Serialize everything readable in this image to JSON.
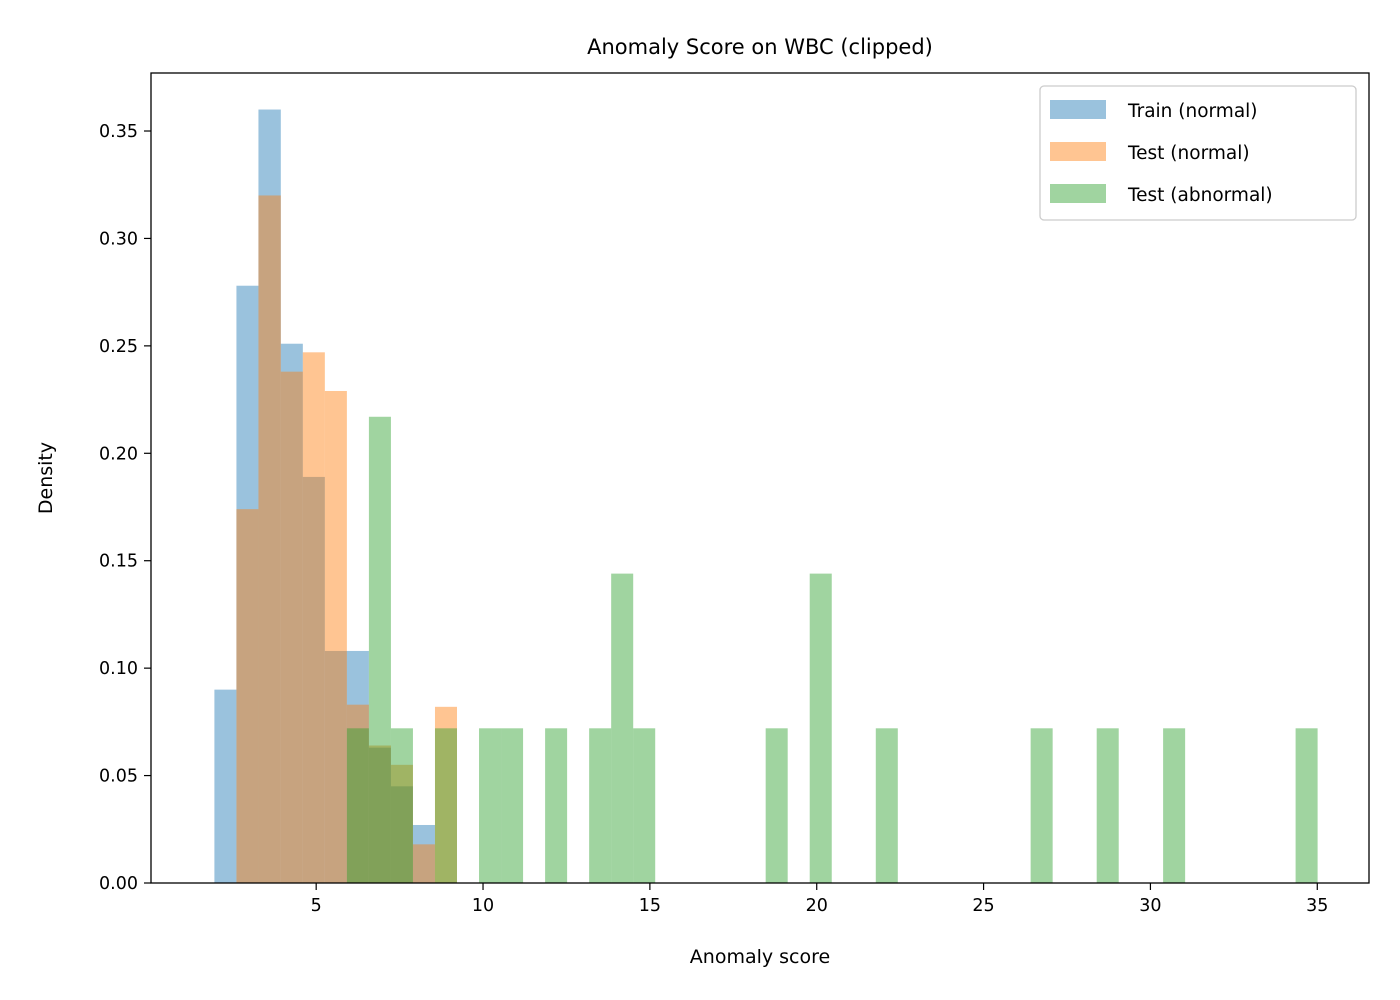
{
  "chart_data": {
    "type": "histogram",
    "title": "Anomaly Score on WBC (clipped)",
    "xlabel": "Anomaly score",
    "ylabel": "Density",
    "xlim": [
      0.05,
      36.55
    ],
    "ylim": [
      0,
      0.377
    ],
    "xticks": [
      {
        "value": 5,
        "label": "5"
      },
      {
        "value": 10,
        "label": "10"
      },
      {
        "value": 15,
        "label": "15"
      },
      {
        "value": 20,
        "label": "20"
      },
      {
        "value": 25,
        "label": "25"
      },
      {
        "value": 30,
        "label": "30"
      },
      {
        "value": 35,
        "label": "35"
      }
    ],
    "yticks": [
      {
        "value": 0.0,
        "label": "0.00"
      },
      {
        "value": 0.05,
        "label": "0.05"
      },
      {
        "value": 0.1,
        "label": "0.10"
      },
      {
        "value": 0.15,
        "label": "0.15"
      },
      {
        "value": 0.2,
        "label": "0.20"
      },
      {
        "value": 0.25,
        "label": "0.25"
      },
      {
        "value": 0.3,
        "label": "0.30"
      },
      {
        "value": 0.35,
        "label": "0.35"
      }
    ],
    "grid": false,
    "legend_position": "top-right",
    "series": [
      {
        "name": "Train (normal)",
        "color": "#1f77b4",
        "alpha": 0.45,
        "bins": [
          {
            "x0": 1.95,
            "x1": 2.61,
            "value": 0.09
          },
          {
            "x0": 2.61,
            "x1": 3.27,
            "value": 0.278
          },
          {
            "x0": 3.27,
            "x1": 3.94,
            "value": 0.36
          },
          {
            "x0": 3.94,
            "x1": 4.6,
            "value": 0.251
          },
          {
            "x0": 4.6,
            "x1": 5.26,
            "value": 0.189
          },
          {
            "x0": 5.26,
            "x1": 5.92,
            "value": 0.108
          },
          {
            "x0": 5.92,
            "x1": 6.58,
            "value": 0.108
          },
          {
            "x0": 6.58,
            "x1": 7.24,
            "value": 0.063
          },
          {
            "x0": 7.24,
            "x1": 7.9,
            "value": 0.045
          },
          {
            "x0": 7.9,
            "x1": 8.56,
            "value": 0.027
          }
        ]
      },
      {
        "name": "Test (normal)",
        "color": "#ff7f0e",
        "alpha": 0.45,
        "bins": [
          {
            "x0": 2.61,
            "x1": 3.27,
            "value": 0.174
          },
          {
            "x0": 3.27,
            "x1": 3.94,
            "value": 0.32
          },
          {
            "x0": 3.94,
            "x1": 4.6,
            "value": 0.238
          },
          {
            "x0": 4.6,
            "x1": 5.26,
            "value": 0.247
          },
          {
            "x0": 5.26,
            "x1": 5.92,
            "value": 0.229
          },
          {
            "x0": 5.92,
            "x1": 6.58,
            "value": 0.083
          },
          {
            "x0": 6.58,
            "x1": 7.24,
            "value": 0.064
          },
          {
            "x0": 7.24,
            "x1": 7.9,
            "value": 0.055
          },
          {
            "x0": 7.9,
            "x1": 8.56,
            "value": 0.018
          },
          {
            "x0": 8.56,
            "x1": 9.22,
            "value": 0.082
          }
        ]
      },
      {
        "name": "Test (abnormal)",
        "color": "#2ca02c",
        "alpha": 0.45,
        "bins": [
          {
            "x0": 5.92,
            "x1": 6.58,
            "value": 0.072
          },
          {
            "x0": 6.58,
            "x1": 7.24,
            "value": 0.217
          },
          {
            "x0": 7.24,
            "x1": 7.9,
            "value": 0.072
          },
          {
            "x0": 8.56,
            "x1": 9.22,
            "value": 0.072
          },
          {
            "x0": 9.88,
            "x1": 10.54,
            "value": 0.072
          },
          {
            "x0": 10.54,
            "x1": 11.2,
            "value": 0.072
          },
          {
            "x0": 11.86,
            "x1": 12.52,
            "value": 0.072
          },
          {
            "x0": 13.18,
            "x1": 13.84,
            "value": 0.072
          },
          {
            "x0": 13.84,
            "x1": 14.5,
            "value": 0.144
          },
          {
            "x0": 14.5,
            "x1": 15.16,
            "value": 0.072
          },
          {
            "x0": 18.47,
            "x1": 19.13,
            "value": 0.072
          },
          {
            "x0": 19.79,
            "x1": 20.45,
            "value": 0.144
          },
          {
            "x0": 21.77,
            "x1": 22.43,
            "value": 0.072
          },
          {
            "x0": 26.41,
            "x1": 27.07,
            "value": 0.072
          },
          {
            "x0": 28.39,
            "x1": 29.05,
            "value": 0.072
          },
          {
            "x0": 30.38,
            "x1": 31.04,
            "value": 0.072
          },
          {
            "x0": 34.35,
            "x1": 35.01,
            "value": 0.072
          }
        ]
      }
    ]
  }
}
